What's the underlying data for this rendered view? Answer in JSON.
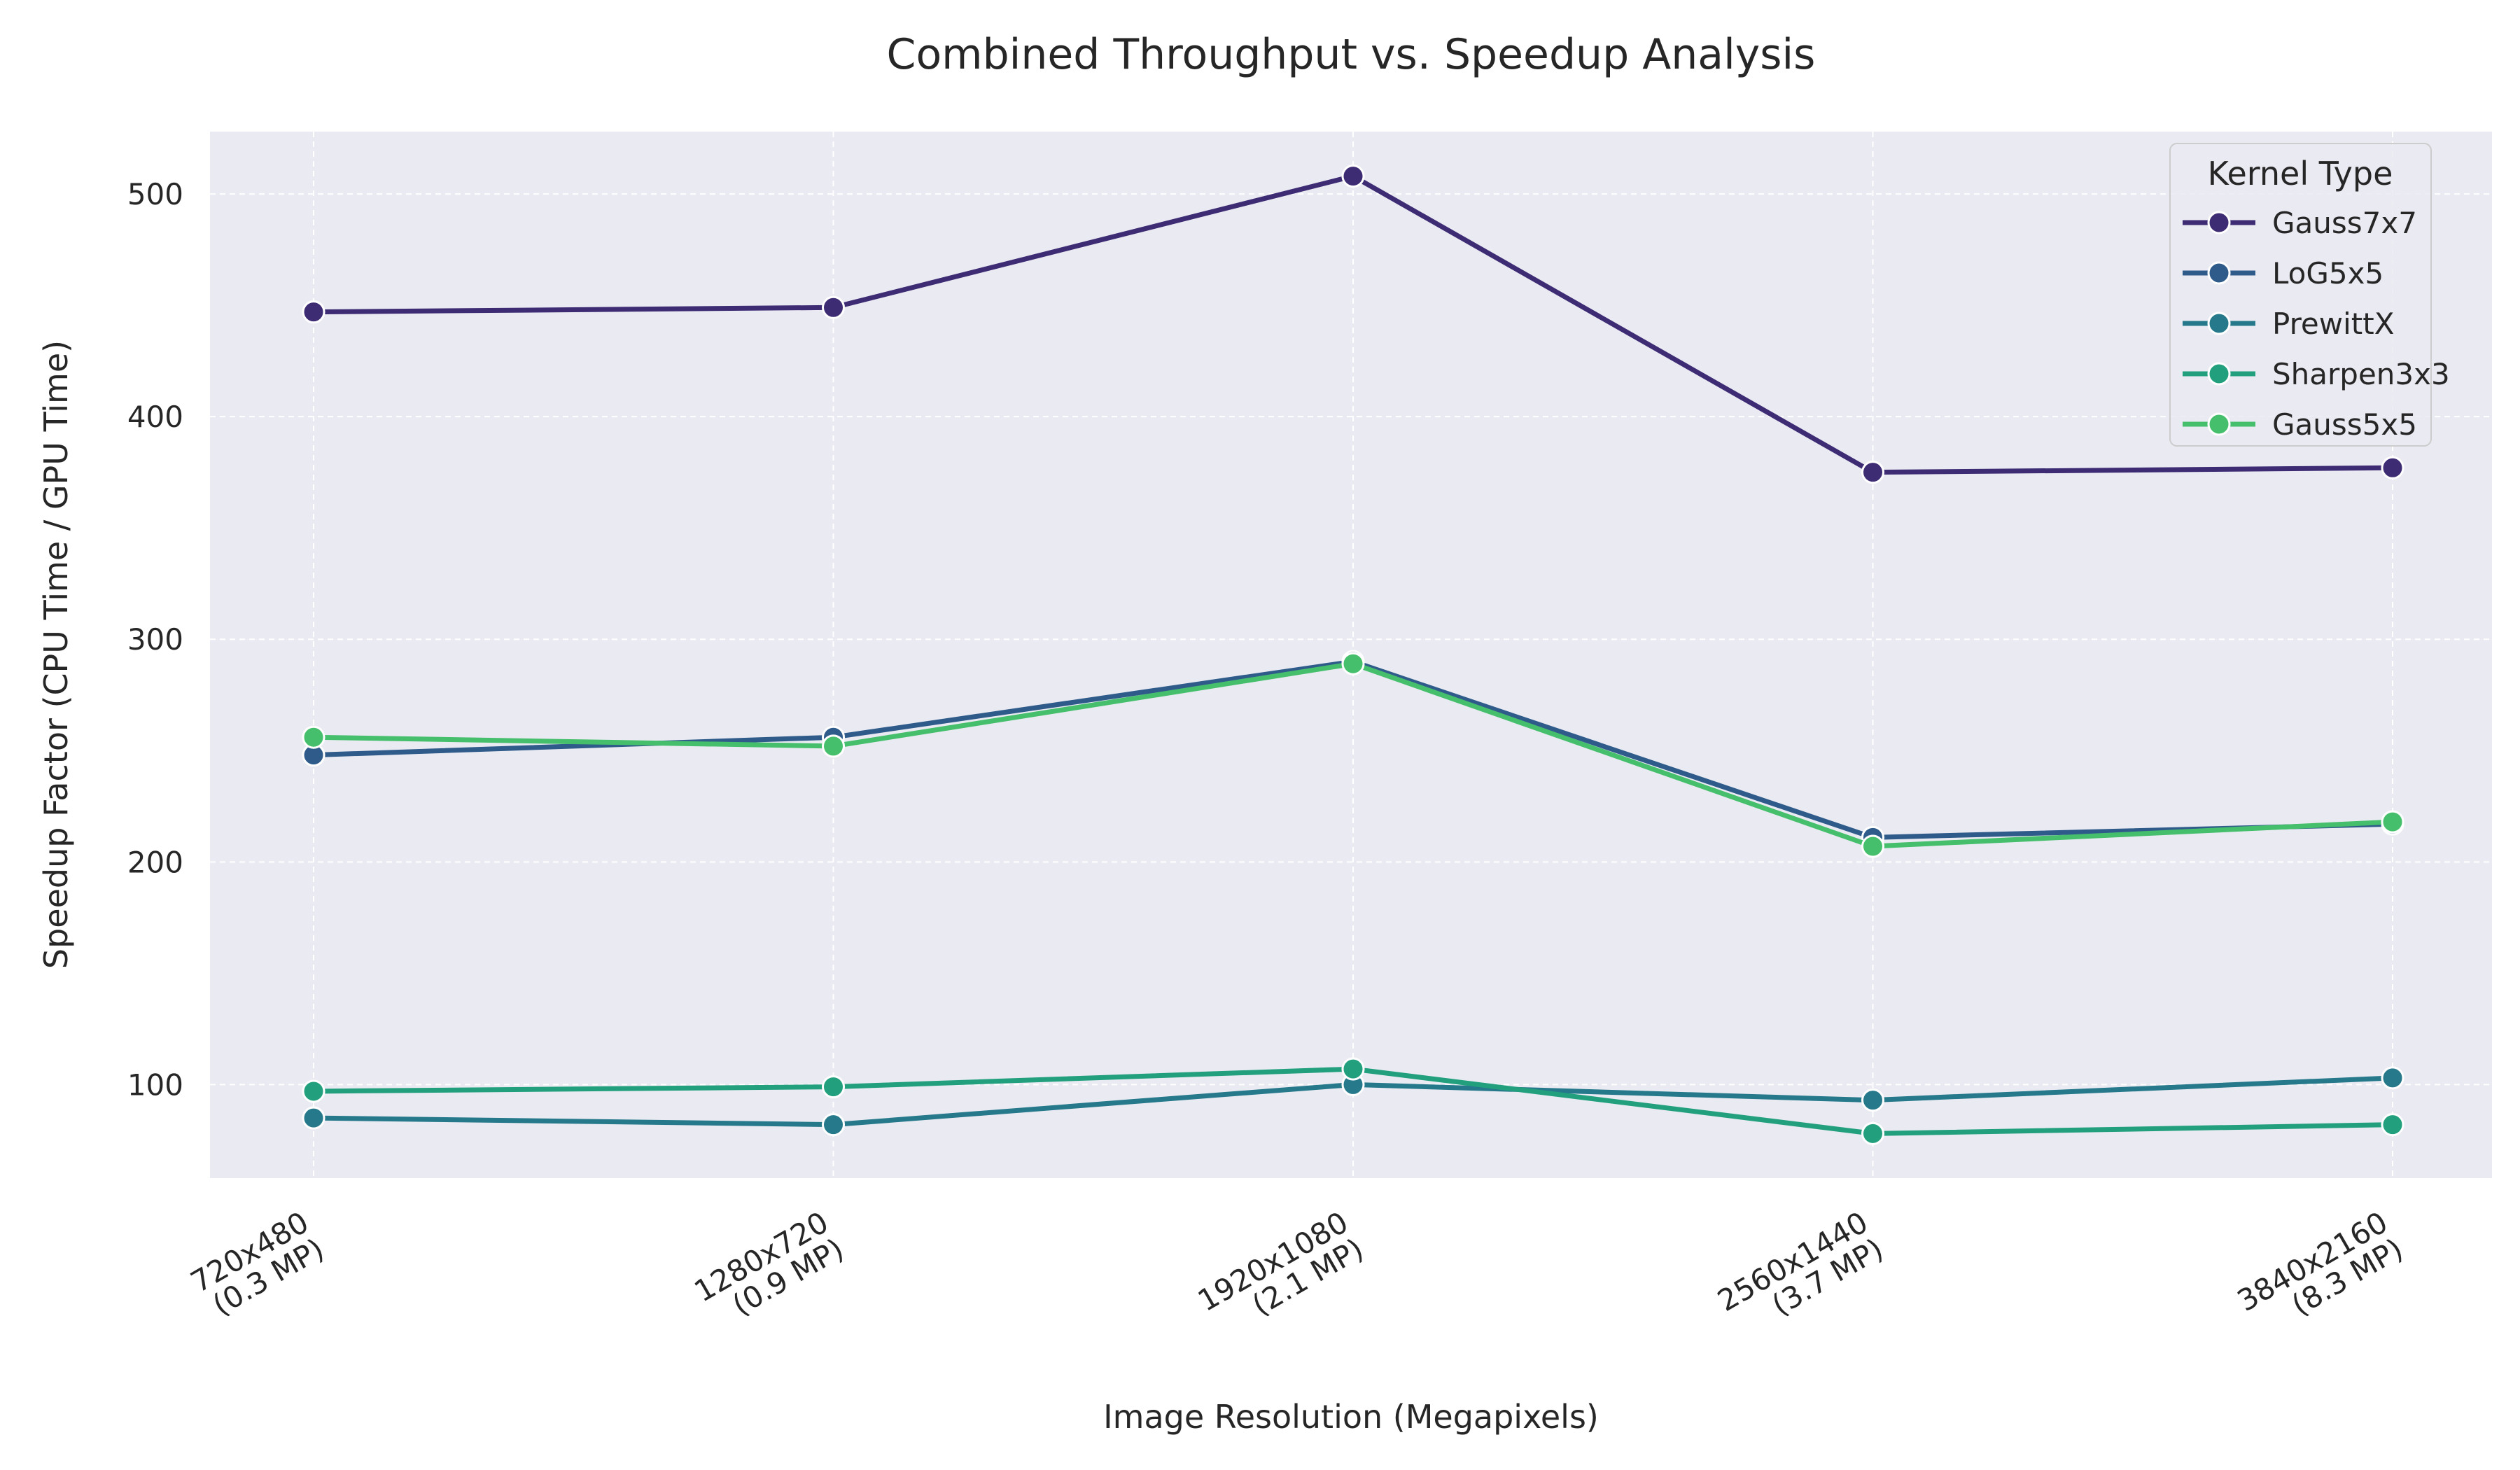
{
  "chart_data": {
    "type": "line",
    "title": "Combined Throughput vs. Speedup Analysis",
    "xlabel": "Image Resolution (Megapixels)",
    "ylabel": "Speedup Factor (CPU Time / GPU Time)",
    "categories": [
      [
        "720x480",
        "(0.3 MP)"
      ],
      [
        "1280x720",
        "(0.9 MP)"
      ],
      [
        "1920x1080",
        "(2.1 MP)"
      ],
      [
        "2560x1440",
        "(3.7 MP)"
      ],
      [
        "3840x2160",
        "(8.3 MP)"
      ]
    ],
    "ylim": [
      58,
      528
    ],
    "yticks": [
      100,
      200,
      300,
      400,
      500
    ],
    "grid": true,
    "legend": {
      "title": "Kernel Type",
      "placement": "top-right"
    },
    "series": [
      {
        "name": "Gauss7x7",
        "color": "#3d2b73",
        "values": [
          447,
          449,
          508,
          375,
          377
        ]
      },
      {
        "name": "LoG5x5",
        "color": "#2f5b8a",
        "values": [
          248,
          256,
          290,
          211,
          217
        ]
      },
      {
        "name": "PrewittX",
        "color": "#25798a",
        "values": [
          85,
          82,
          100,
          93,
          103
        ]
      },
      {
        "name": "Sharpen3x3",
        "color": "#22a07e",
        "values": [
          97,
          99,
          107,
          78,
          82
        ]
      },
      {
        "name": "Gauss5x5",
        "color": "#45bf6c",
        "values": [
          256,
          252,
          289,
          207,
          218
        ]
      }
    ]
  }
}
